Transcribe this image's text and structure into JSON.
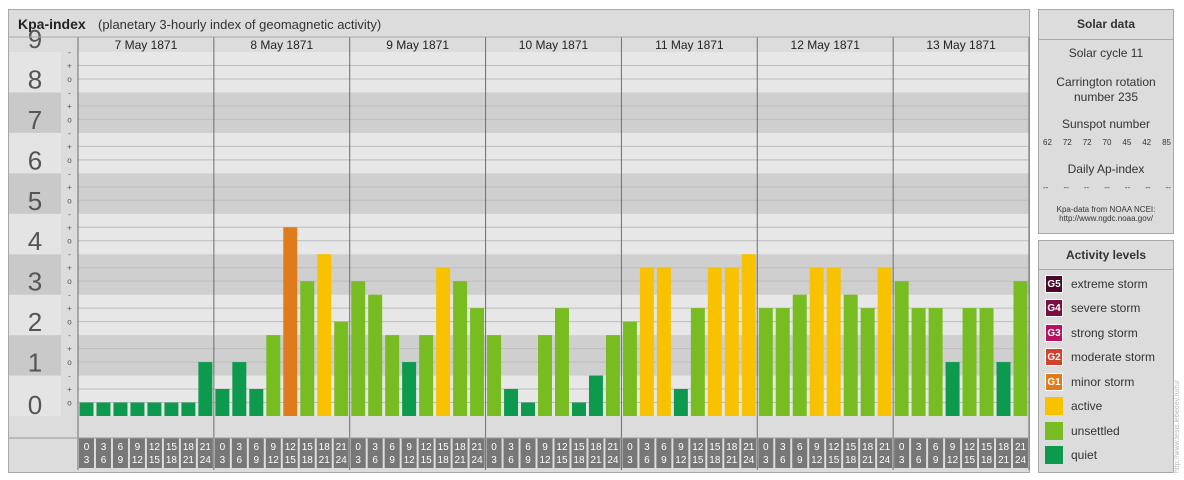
{
  "title": {
    "main": "Kpa-index",
    "sub": "(planetary 3-hourly index of geomagnetic activity)"
  },
  "chart_data": {
    "type": "bar",
    "ylim": [
      0,
      9
    ],
    "y_ticks": [
      "0",
      "1",
      "2",
      "3",
      "4",
      "5",
      "6",
      "7",
      "8",
      "9"
    ],
    "y_subticks": [
      "o",
      "+",
      "-"
    ],
    "days": [
      "7 May 1871",
      "8 May 1871",
      "9 May 1871",
      "10 May 1871",
      "11 May 1871",
      "12 May 1871",
      "13 May 1871"
    ],
    "hour_labels": [
      [
        "0",
        "3"
      ],
      [
        "3",
        "6"
      ],
      [
        "6",
        "9"
      ],
      [
        "9",
        "12"
      ],
      [
        "12",
        "15"
      ],
      [
        "15",
        "18"
      ],
      [
        "18",
        "21"
      ],
      [
        "21",
        "24"
      ]
    ],
    "values": [
      [
        0.333,
        0.333,
        0.333,
        0.333,
        0.333,
        0.333,
        0.333,
        1.333
      ],
      [
        0.667,
        1.333,
        0.667,
        2.0,
        4.667,
        3.333,
        4.0,
        2.333
      ],
      [
        3.333,
        3.0,
        2.0,
        1.333,
        2.0,
        3.667,
        3.333,
        2.667
      ],
      [
        2.0,
        0.667,
        0.333,
        2.0,
        2.667,
        0.333,
        1.0,
        2.0
      ],
      [
        2.333,
        3.667,
        3.667,
        0.667,
        2.667,
        3.667,
        3.667,
        4.0
      ],
      [
        2.667,
        2.667,
        3.0,
        3.667,
        3.667,
        3.0,
        2.667,
        3.667
      ],
      [
        3.333,
        2.667,
        2.667,
        1.333,
        2.667,
        2.667,
        1.333,
        3.333
      ]
    ]
  },
  "colors": {
    "quiet": "#0d9a4e",
    "unsettled": "#77bd22",
    "active": "#f8c200",
    "minor": "#e07b1b",
    "moderate": "#d4412a",
    "strong": "#b6125e",
    "severe": "#7a0f43",
    "extreme": "#4b0a2a"
  },
  "solar": {
    "title": "Solar data",
    "cycle": "Solar cycle 11",
    "carrington_line1": "Carrington rotation",
    "carrington_line2": "number 235",
    "sunspot_label": "Sunspot number",
    "sunspot_values": [
      "62",
      "72",
      "72",
      "70",
      "45",
      "42",
      "85"
    ],
    "ap_label": "Daily Ap-index",
    "ap_values": [
      "--",
      "--",
      "--",
      "--",
      "--",
      "--",
      "--"
    ],
    "source_line1": "Kpa-data from NOAA NCEI:",
    "source_line2": "http://www.ngdc.noaa.gov/"
  },
  "levels": {
    "title": "Activity levels",
    "items": [
      {
        "code": "G5",
        "label": "extreme storm",
        "color": "#4b0a2a"
      },
      {
        "code": "G4",
        "label": "severe storm",
        "color": "#7a0f43"
      },
      {
        "code": "G3",
        "label": "strong storm",
        "color": "#b6125e"
      },
      {
        "code": "G2",
        "label": "moderate storm",
        "color": "#d4412a"
      },
      {
        "code": "G1",
        "label": "minor storm",
        "color": "#e07b1b"
      },
      {
        "code": "",
        "label": "active",
        "color": "#f8c200"
      },
      {
        "code": "",
        "label": "unsettled",
        "color": "#77bd22"
      },
      {
        "code": "",
        "label": "quiet",
        "color": "#0d9a4e"
      }
    ]
  },
  "watermark": "http://www.tesis.lebedev.ru/ru/"
}
